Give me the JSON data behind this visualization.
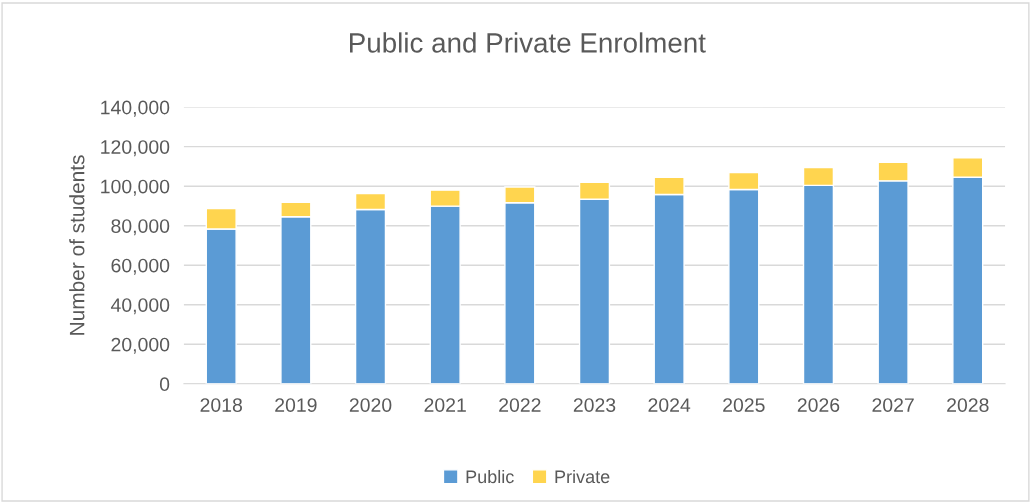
{
  "chart_data": {
    "type": "bar",
    "title": "Public and Private Enrolment",
    "ylabel": "Number of students",
    "categories": [
      "2018",
      "2019",
      "2020",
      "2021",
      "2022",
      "2023",
      "2024",
      "2025",
      "2026",
      "2027",
      "2028"
    ],
    "stacked": true,
    "series": [
      {
        "name": "Public",
        "color": "#5b9bd5",
        "values": [
          78300,
          84500,
          88200,
          89900,
          91600,
          93400,
          95800,
          98300,
          100400,
          102700,
          104500
        ]
      },
      {
        "name": "Private",
        "color": "#ffd54f",
        "values": [
          10400,
          7400,
          8100,
          8100,
          8000,
          8600,
          8700,
          8600,
          9000,
          9400,
          9800
        ]
      }
    ],
    "ylim": [
      0,
      140000
    ],
    "yticks": [
      {
        "value": 0,
        "label": "0"
      },
      {
        "value": 20000,
        "label": "20,000"
      },
      {
        "value": 40000,
        "label": "40,000"
      },
      {
        "value": 60000,
        "label": "60,000"
      },
      {
        "value": 80000,
        "label": "80,000"
      },
      {
        "value": 100000,
        "label": "100,000"
      },
      {
        "value": 120000,
        "label": "120,000"
      },
      {
        "value": 140000,
        "label": "140,000"
      }
    ],
    "grid": "y",
    "legend": "bottom"
  }
}
